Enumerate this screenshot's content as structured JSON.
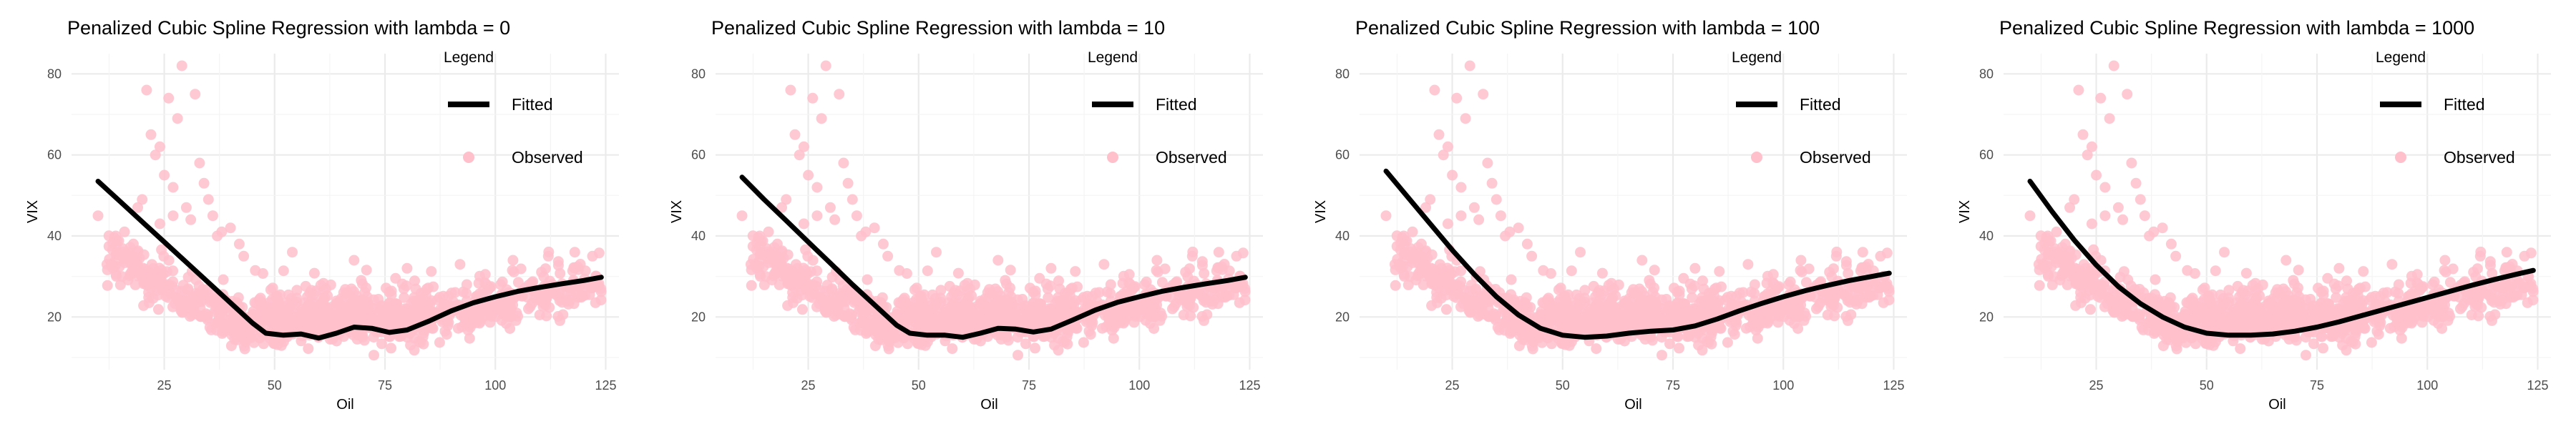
{
  "chart_data": [
    {
      "type": "scatter",
      "title": "Penalized Cubic Spline Regression with lambda = 0",
      "xlabel": "Oil",
      "ylabel": "VIX",
      "xlim": [
        4,
        128
      ],
      "ylim": [
        7,
        85
      ],
      "xticks": [
        25,
        50,
        75,
        100,
        125
      ],
      "yticks": [
        20,
        40,
        60,
        80
      ],
      "grid": true,
      "legend": {
        "title": "Legend",
        "position": "top-right",
        "entries": [
          {
            "label": "Fitted",
            "kind": "line"
          },
          {
            "label": "Observed",
            "kind": "point"
          }
        ]
      },
      "series": [
        {
          "name": "Fitted",
          "kind": "line",
          "color": "#000000",
          "x": [
            10,
            15,
            20,
            25,
            30,
            35,
            40,
            45,
            48,
            52,
            56,
            60,
            64,
            68,
            72,
            76,
            80,
            85,
            90,
            95,
            100,
            105,
            110,
            115,
            120,
            124
          ],
          "y": [
            53.5,
            48.5,
            43.5,
            38.5,
            33.5,
            28.5,
            23.5,
            18.5,
            16.0,
            15.5,
            15.8,
            14.8,
            16.0,
            17.5,
            17.2,
            16.2,
            16.8,
            19.0,
            21.5,
            23.5,
            25.0,
            26.3,
            27.3,
            28.2,
            29.0,
            29.8
          ]
        },
        {
          "name": "Observed",
          "kind": "point",
          "color": "#ffc0cb"
        }
      ]
    },
    {
      "type": "scatter",
      "title": "Penalized Cubic Spline Regression with lambda = 10",
      "xlabel": "Oil",
      "ylabel": "VIX",
      "xlim": [
        4,
        128
      ],
      "ylim": [
        7,
        85
      ],
      "xticks": [
        25,
        50,
        75,
        100,
        125
      ],
      "yticks": [
        20,
        40,
        60,
        80
      ],
      "grid": true,
      "legend": {
        "title": "Legend",
        "position": "top-right",
        "entries": [
          {
            "label": "Fitted",
            "kind": "line"
          },
          {
            "label": "Observed",
            "kind": "point"
          }
        ]
      },
      "series": [
        {
          "name": "Fitted",
          "kind": "line",
          "color": "#000000",
          "x": [
            10,
            15,
            20,
            25,
            30,
            35,
            40,
            45,
            48,
            52,
            56,
            60,
            64,
            68,
            72,
            76,
            80,
            85,
            90,
            95,
            100,
            105,
            110,
            115,
            120,
            124
          ],
          "y": [
            54.5,
            49.0,
            43.8,
            38.5,
            33.3,
            28.0,
            23.0,
            18.0,
            16.0,
            15.5,
            15.5,
            15.0,
            16.0,
            17.2,
            17.0,
            16.3,
            17.0,
            19.3,
            21.7,
            23.6,
            25.0,
            26.3,
            27.3,
            28.2,
            29.0,
            29.8
          ]
        },
        {
          "name": "Observed",
          "kind": "point",
          "color": "#ffc0cb"
        }
      ]
    },
    {
      "type": "scatter",
      "title": "Penalized Cubic Spline Regression with lambda = 100",
      "xlabel": "Oil",
      "ylabel": "VIX",
      "xlim": [
        4,
        128
      ],
      "ylim": [
        7,
        85
      ],
      "xticks": [
        25,
        50,
        75,
        100,
        125
      ],
      "yticks": [
        20,
        40,
        60,
        80
      ],
      "grid": true,
      "legend": {
        "title": "Legend",
        "position": "top-right",
        "entries": [
          {
            "label": "Fitted",
            "kind": "line"
          },
          {
            "label": "Observed",
            "kind": "point"
          }
        ]
      },
      "series": [
        {
          "name": "Fitted",
          "kind": "line",
          "color": "#000000",
          "x": [
            10,
            15,
            20,
            25,
            30,
            35,
            40,
            45,
            50,
            55,
            60,
            65,
            70,
            75,
            80,
            85,
            90,
            95,
            100,
            105,
            110,
            115,
            120,
            124
          ],
          "y": [
            56.0,
            49.5,
            43.0,
            36.5,
            30.5,
            25.0,
            20.5,
            17.2,
            15.5,
            15.0,
            15.3,
            16.0,
            16.5,
            16.8,
            17.8,
            19.5,
            21.5,
            23.3,
            25.0,
            26.5,
            27.8,
            29.0,
            30.0,
            30.8
          ]
        },
        {
          "name": "Observed",
          "kind": "point",
          "color": "#ffc0cb"
        }
      ]
    },
    {
      "type": "scatter",
      "title": "Penalized Cubic Spline Regression with lambda = 1000",
      "xlabel": "Oil",
      "ylabel": "VIX",
      "xlim": [
        4,
        128
      ],
      "ylim": [
        7,
        85
      ],
      "xticks": [
        25,
        50,
        75,
        100,
        125
      ],
      "yticks": [
        20,
        40,
        60,
        80
      ],
      "grid": true,
      "legend": {
        "title": "Legend",
        "position": "top-right",
        "entries": [
          {
            "label": "Fitted",
            "kind": "line"
          },
          {
            "label": "Observed",
            "kind": "point"
          }
        ]
      },
      "series": [
        {
          "name": "Fitted",
          "kind": "line",
          "color": "#000000",
          "x": [
            10,
            15,
            20,
            25,
            30,
            35,
            40,
            45,
            50,
            55,
            60,
            65,
            70,
            75,
            80,
            85,
            90,
            95,
            100,
            105,
            110,
            115,
            120,
            124
          ],
          "y": [
            53.5,
            46.0,
            39.0,
            32.8,
            27.5,
            23.3,
            20.0,
            17.5,
            16.0,
            15.5,
            15.5,
            15.8,
            16.5,
            17.5,
            18.8,
            20.3,
            21.8,
            23.3,
            24.8,
            26.3,
            27.8,
            29.2,
            30.5,
            31.5
          ]
        },
        {
          "name": "Observed",
          "kind": "point",
          "color": "#ffc0cb"
        }
      ]
    }
  ]
}
